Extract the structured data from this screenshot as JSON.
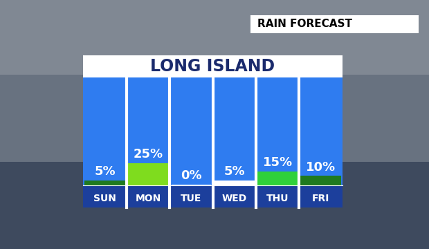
{
  "chart_data": {
    "type": "bar",
    "title": "LONG ISLAND",
    "subtitle": "RAIN FORECAST",
    "categories": [
      "SUN",
      "MON",
      "TUE",
      "WED",
      "THU",
      "FRI"
    ],
    "values": [
      5,
      25,
      0,
      5,
      15,
      10
    ],
    "value_labels": [
      "5%",
      "25%",
      "0%",
      "5%",
      "15%",
      "10%"
    ],
    "data_labels": true,
    "colors": [
      "#1f7a1f",
      "#7fdc1e",
      "#ffffff",
      "#ffffff",
      "#2fd13a",
      "#1f7a1f"
    ],
    "ylim": [
      0,
      125
    ],
    "tick_labels": "x"
  }
}
